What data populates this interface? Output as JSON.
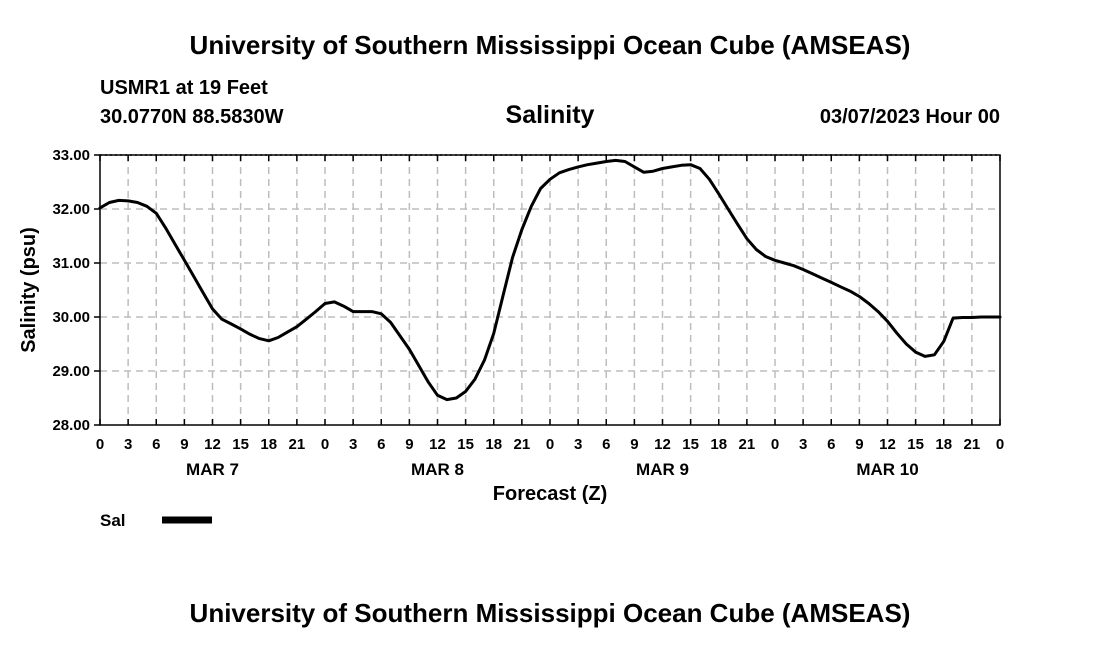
{
  "header": {
    "title": "University of Southern Mississippi Ocean Cube (AMSEAS)",
    "station": "USMR1 at 19 Feet",
    "coords": "30.0770N  88.5830W",
    "datetime": "03/07/2023 Hour 00"
  },
  "footer": {
    "title": "University of Southern Mississippi Ocean Cube (AMSEAS)"
  },
  "chart_data": {
    "type": "line",
    "title": "Salinity",
    "xlabel": "Forecast (Z)",
    "ylabel": "Salinity (psu)",
    "ylim": [
      28,
      33
    ],
    "xlim": [
      0,
      96
    ],
    "grid": true,
    "x_ticks": [
      0,
      3,
      6,
      9,
      12,
      15,
      18,
      21,
      24,
      27,
      30,
      33,
      36,
      39,
      42,
      45,
      48,
      51,
      54,
      57,
      60,
      63,
      66,
      69,
      72,
      75,
      78,
      81,
      84,
      87,
      90,
      93,
      96
    ],
    "x_tick_labels": [
      "0",
      "3",
      "6",
      "9",
      "12",
      "15",
      "18",
      "21",
      "0",
      "3",
      "6",
      "9",
      "12",
      "15",
      "18",
      "21",
      "0",
      "3",
      "6",
      "9",
      "12",
      "15",
      "18",
      "21",
      "0",
      "3",
      "6",
      "9",
      "12",
      "15",
      "18",
      "21",
      "0"
    ],
    "y_ticks": [
      28,
      29,
      30,
      31,
      32,
      33
    ],
    "y_tick_labels": [
      "28.00",
      "29.00",
      "30.00",
      "31.00",
      "32.00",
      "33.00"
    ],
    "day_labels": [
      {
        "label": "MAR 7",
        "x": 12
      },
      {
        "label": "MAR 8",
        "x": 36
      },
      {
        "label": "MAR 9",
        "x": 60
      },
      {
        "label": "MAR 10",
        "x": 84
      }
    ],
    "series": [
      {
        "name": "Sal",
        "color": "#000000",
        "x": [
          0,
          1,
          2,
          3,
          4,
          5,
          6,
          7,
          8,
          9,
          10,
          11,
          12,
          13,
          14,
          15,
          16,
          17,
          18,
          19,
          20,
          21,
          22,
          23,
          24,
          25,
          26,
          27,
          28,
          29,
          30,
          31,
          32,
          33,
          34,
          35,
          36,
          37,
          38,
          39,
          40,
          41,
          42,
          43,
          44,
          45,
          46,
          47,
          48,
          49,
          50,
          51,
          52,
          53,
          54,
          55,
          56,
          57,
          58,
          59,
          60,
          61,
          62,
          63,
          64,
          65,
          66,
          67,
          68,
          69,
          70,
          71,
          72,
          73,
          74,
          75,
          76,
          77,
          78,
          79,
          80,
          81,
          82,
          83,
          84,
          85,
          86,
          87,
          88,
          89,
          90,
          91,
          92,
          93,
          94,
          95,
          96
        ],
        "values": [
          32.02,
          32.12,
          32.16,
          32.15,
          32.12,
          32.05,
          31.92,
          31.65,
          31.35,
          31.05,
          30.75,
          30.45,
          30.15,
          29.96,
          29.87,
          29.78,
          29.68,
          29.6,
          29.56,
          29.62,
          29.72,
          29.82,
          29.96,
          30.1,
          30.25,
          30.28,
          30.2,
          30.1,
          30.1,
          30.1,
          30.06,
          29.9,
          29.65,
          29.4,
          29.1,
          28.8,
          28.55,
          28.47,
          28.5,
          28.62,
          28.85,
          29.2,
          29.7,
          30.4,
          31.1,
          31.62,
          32.05,
          32.38,
          32.55,
          32.67,
          32.73,
          32.78,
          32.82,
          32.85,
          32.88,
          32.9,
          32.88,
          32.78,
          32.68,
          32.7,
          32.75,
          32.78,
          32.81,
          32.82,
          32.75,
          32.55,
          32.28,
          32.0,
          31.72,
          31.45,
          31.25,
          31.12,
          31.05,
          31.0,
          30.95,
          30.88,
          30.8,
          30.72,
          30.64,
          30.56,
          30.48,
          30.38,
          30.25,
          30.1,
          29.92,
          29.7,
          29.5,
          29.35,
          29.27,
          29.3,
          29.55,
          29.98,
          29.99,
          29.99,
          30.0,
          30.0,
          30.0
        ]
      }
    ],
    "legend": [
      {
        "label": "Sal",
        "position": "bottom-left"
      }
    ]
  }
}
